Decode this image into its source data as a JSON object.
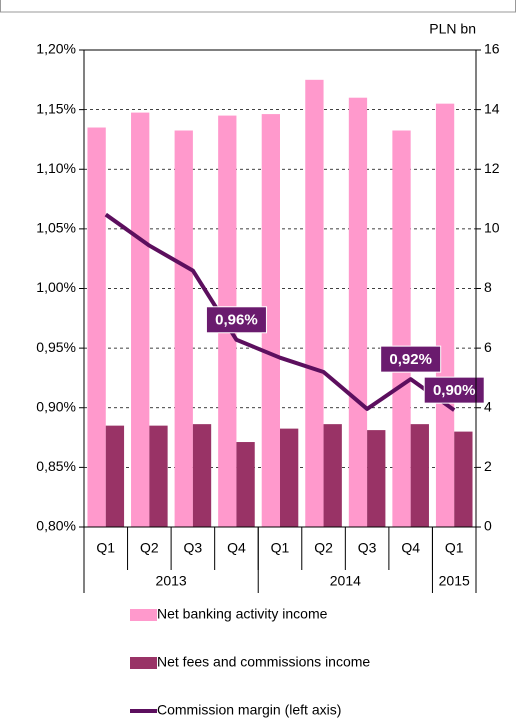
{
  "chart_data": {
    "type": "bar",
    "unit_label": "PLN bn",
    "categories": [
      "Q1",
      "Q2",
      "Q3",
      "Q4",
      "Q1",
      "Q2",
      "Q3",
      "Q4",
      "Q1"
    ],
    "groups": [
      {
        "label": "2013",
        "count": 4
      },
      {
        "label": "2014",
        "count": 4
      },
      {
        "label": "2015",
        "count": 1
      }
    ],
    "series": [
      {
        "name": "Net banking activity income",
        "type": "bar",
        "axis": "y2",
        "color": "#ff99cc",
        "values": [
          13.4,
          13.9,
          13.3,
          13.8,
          13.85,
          15.0,
          14.4,
          13.3,
          14.2
        ]
      },
      {
        "name": "Net fees and commissions income",
        "type": "bar",
        "axis": "y2",
        "color": "#993366",
        "values": [
          3.4,
          3.4,
          3.45,
          2.85,
          3.3,
          3.45,
          3.25,
          3.45,
          3.2
        ]
      },
      {
        "name": "Commission margin (left axis)",
        "type": "line",
        "axis": "y",
        "color": "#5c0f5e",
        "values": [
          1.062,
          1.036,
          1.015,
          0.957,
          0.942,
          0.93,
          0.899,
          0.924,
          0.898
        ],
        "value_labels": [
          null,
          null,
          null,
          "0,96%",
          null,
          null,
          null,
          "0,92%",
          "0,90%"
        ]
      }
    ],
    "ylim": [
      0.8,
      1.2
    ],
    "yticks": [
      {
        "value": 0.8,
        "label": "0,80%"
      },
      {
        "value": 0.85,
        "label": "0,85%"
      },
      {
        "value": 0.9,
        "label": "0,90%"
      },
      {
        "value": 0.95,
        "label": "0,95%"
      },
      {
        "value": 1.0,
        "label": "1,00%"
      },
      {
        "value": 1.05,
        "label": "1,05%"
      },
      {
        "value": 1.1,
        "label": "1,10%"
      },
      {
        "value": 1.15,
        "label": "1,15%"
      },
      {
        "value": 1.2,
        "label": "1,20%"
      }
    ],
    "y2lim": [
      0,
      16
    ],
    "y2ticks": [
      0,
      2,
      4,
      6,
      8,
      10,
      12,
      14,
      16
    ],
    "grid": true,
    "legend": "bottom"
  }
}
